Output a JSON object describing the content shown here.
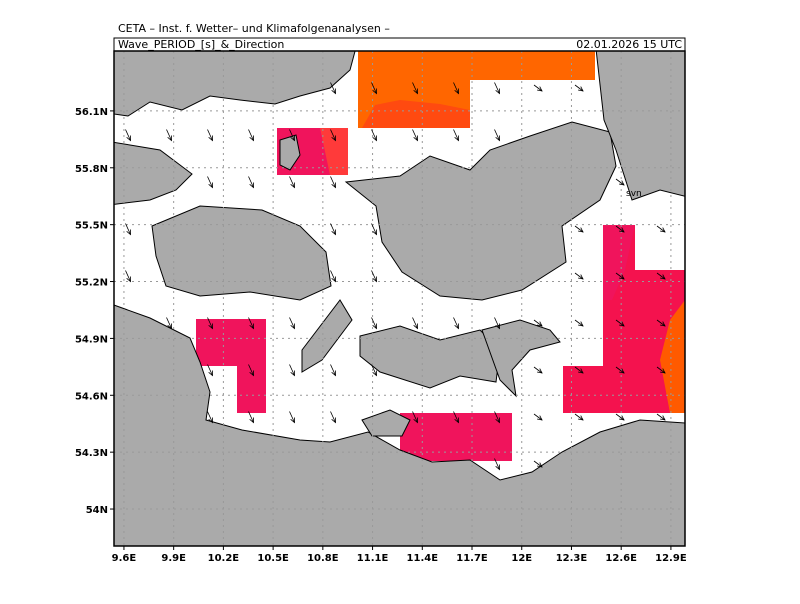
{
  "header": "CETA – Inst. f. Wetter– und Klimafolgenanalysen –",
  "title": "Wave_PERIOD_[s]_&_Direction",
  "date": "02.01.2026 15 UTC",
  "map": {
    "xlim": [
      9.54,
      12.985
    ],
    "ylim": [
      53.805,
      56.416
    ],
    "xticks": [
      {
        "value": 9.6,
        "label": "9.6E"
      },
      {
        "value": 9.9,
        "label": "9.9E"
      },
      {
        "value": 10.2,
        "label": "10.2E"
      },
      {
        "value": 10.5,
        "label": "10.5E"
      },
      {
        "value": 10.8,
        "label": "10.8E"
      },
      {
        "value": 11.1,
        "label": "11.1E"
      },
      {
        "value": 11.4,
        "label": "11.4E"
      },
      {
        "value": 11.7,
        "label": "11.7E"
      },
      {
        "value": 12,
        "label": "12E"
      },
      {
        "value": 12.3,
        "label": "12.3E"
      },
      {
        "value": 12.6,
        "label": "12.6E"
      },
      {
        "value": 12.9,
        "label": "12.9E"
      }
    ],
    "yticks": [
      {
        "value": 54,
        "label": "54N"
      },
      {
        "value": 54.3,
        "label": "54.3N"
      },
      {
        "value": 54.6,
        "label": "54.6N"
      },
      {
        "value": 54.9,
        "label": "54.9N"
      },
      {
        "value": 55.2,
        "label": "55.2N"
      },
      {
        "value": 55.5,
        "label": "55.5N"
      },
      {
        "value": 55.8,
        "label": "55.8N"
      },
      {
        "value": 56.1,
        "label": "56.1N"
      }
    ],
    "place_label": "svn"
  }
}
